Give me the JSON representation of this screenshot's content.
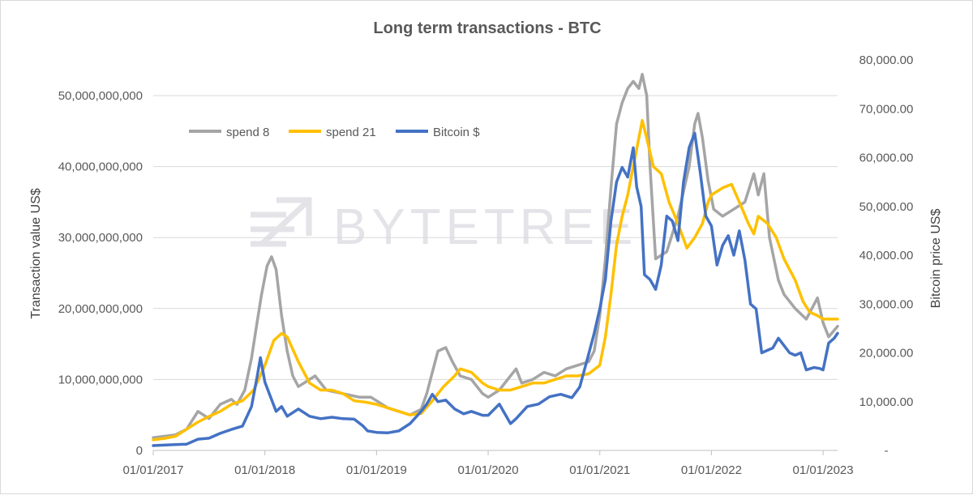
{
  "chart_data": {
    "type": "line",
    "title": "Long term transactions - BTC",
    "ylabel_left": "Transaction value US$",
    "ylabel_right": "Bitcoin price US$",
    "watermark": "BYTETREE",
    "left_axis": {
      "min": 0,
      "max": 50000000000,
      "step": 10000000000,
      "ticks": [
        "0",
        "10,000,000,000",
        "20,000,000,000",
        "30,000,000,000",
        "40,000,000,000",
        "50,000,000,000"
      ]
    },
    "right_axis": {
      "min": 0,
      "max": 80000,
      "step": 10000,
      "ticks": [
        "-",
        "10,000.00",
        "20,000.00",
        "30,000.00",
        "40,000.00",
        "50,000.00",
        "60,000.00",
        "70,000.00",
        "80,000.00"
      ]
    },
    "x_axis": {
      "min": 2017.0,
      "max": 2023.13,
      "ticks": [
        {
          "x": 2017,
          "label": "01/01/2017"
        },
        {
          "x": 2018,
          "label": "01/01/2018"
        },
        {
          "x": 2019,
          "label": "01/01/2019"
        },
        {
          "x": 2020,
          "label": "01/01/2020"
        },
        {
          "x": 2021,
          "label": "01/01/2021"
        },
        {
          "x": 2022,
          "label": "01/01/2022"
        },
        {
          "x": 2023,
          "label": "01/01/2023"
        }
      ]
    },
    "grid": true,
    "legend_position": "top-left",
    "series": [
      {
        "name": "spend 8",
        "axis": "left",
        "color": "#a5a5a5",
        "points": [
          [
            2017.0,
            1.8
          ],
          [
            2017.1,
            2.0
          ],
          [
            2017.2,
            2.2
          ],
          [
            2017.3,
            3.0
          ],
          [
            2017.4,
            5.5
          ],
          [
            2017.5,
            4.5
          ],
          [
            2017.6,
            6.5
          ],
          [
            2017.7,
            7.2
          ],
          [
            2017.75,
            6.5
          ],
          [
            2017.82,
            8.5
          ],
          [
            2017.88,
            13
          ],
          [
            2017.93,
            18
          ],
          [
            2017.97,
            22
          ],
          [
            2018.02,
            26
          ],
          [
            2018.06,
            27.3
          ],
          [
            2018.1,
            25.5
          ],
          [
            2018.15,
            19
          ],
          [
            2018.2,
            14
          ],
          [
            2018.25,
            10.5
          ],
          [
            2018.3,
            9
          ],
          [
            2018.35,
            9.5
          ],
          [
            2018.45,
            10.5
          ],
          [
            2018.55,
            8.5
          ],
          [
            2018.7,
            8
          ],
          [
            2018.85,
            7.5
          ],
          [
            2018.95,
            7.5
          ],
          [
            2019.1,
            6
          ],
          [
            2019.2,
            5.5
          ],
          [
            2019.3,
            5
          ],
          [
            2019.4,
            5.8
          ],
          [
            2019.45,
            8
          ],
          [
            2019.5,
            11
          ],
          [
            2019.55,
            14
          ],
          [
            2019.62,
            14.5
          ],
          [
            2019.68,
            12.5
          ],
          [
            2019.75,
            10.5
          ],
          [
            2019.85,
            10
          ],
          [
            2019.95,
            8
          ],
          [
            2020.0,
            7.5
          ],
          [
            2020.1,
            8.5
          ],
          [
            2020.2,
            10.5
          ],
          [
            2020.25,
            11.5
          ],
          [
            2020.3,
            9.5
          ],
          [
            2020.4,
            10
          ],
          [
            2020.5,
            11
          ],
          [
            2020.6,
            10.5
          ],
          [
            2020.7,
            11.5
          ],
          [
            2020.8,
            12
          ],
          [
            2020.9,
            12.5
          ],
          [
            2020.95,
            14
          ],
          [
            2021.0,
            19
          ],
          [
            2021.05,
            27
          ],
          [
            2021.1,
            37
          ],
          [
            2021.15,
            46
          ],
          [
            2021.2,
            49
          ],
          [
            2021.25,
            51
          ],
          [
            2021.3,
            52
          ],
          [
            2021.35,
            51
          ],
          [
            2021.38,
            53
          ],
          [
            2021.42,
            50
          ],
          [
            2021.45,
            40
          ],
          [
            2021.5,
            27
          ],
          [
            2021.6,
            28
          ],
          [
            2021.7,
            33
          ],
          [
            2021.8,
            40
          ],
          [
            2021.85,
            46
          ],
          [
            2021.88,
            47.5
          ],
          [
            2021.92,
            44
          ],
          [
            2021.97,
            38
          ],
          [
            2022.02,
            34
          ],
          [
            2022.1,
            33
          ],
          [
            2022.2,
            34
          ],
          [
            2022.3,
            35
          ],
          [
            2022.38,
            39
          ],
          [
            2022.42,
            36
          ],
          [
            2022.47,
            39
          ],
          [
            2022.52,
            30
          ],
          [
            2022.6,
            24
          ],
          [
            2022.65,
            22
          ],
          [
            2022.75,
            20
          ],
          [
            2022.85,
            18.5
          ],
          [
            2022.95,
            21.5
          ],
          [
            2023.0,
            18
          ],
          [
            2023.05,
            16
          ],
          [
            2023.13,
            17.5
          ]
        ]
      },
      {
        "name": "spend 21",
        "axis": "left",
        "color": "#ffc000",
        "points": [
          [
            2017.0,
            1.5
          ],
          [
            2017.1,
            1.7
          ],
          [
            2017.2,
            2.0
          ],
          [
            2017.3,
            3.0
          ],
          [
            2017.4,
            4.0
          ],
          [
            2017.5,
            4.8
          ],
          [
            2017.6,
            5.5
          ],
          [
            2017.7,
            6.5
          ],
          [
            2017.8,
            7.0
          ],
          [
            2017.9,
            8.5
          ],
          [
            2018.0,
            12
          ],
          [
            2018.08,
            15.5
          ],
          [
            2018.15,
            16.5
          ],
          [
            2018.2,
            16
          ],
          [
            2018.3,
            12.5
          ],
          [
            2018.4,
            9.5
          ],
          [
            2018.5,
            8.5
          ],
          [
            2018.6,
            8.5
          ],
          [
            2018.7,
            8
          ],
          [
            2018.8,
            7
          ],
          [
            2018.9,
            6.8
          ],
          [
            2019.0,
            6.5
          ],
          [
            2019.1,
            6
          ],
          [
            2019.2,
            5.5
          ],
          [
            2019.3,
            5
          ],
          [
            2019.4,
            5.2
          ],
          [
            2019.5,
            7
          ],
          [
            2019.6,
            9
          ],
          [
            2019.7,
            10.5
          ],
          [
            2019.75,
            11.5
          ],
          [
            2019.85,
            11
          ],
          [
            2019.95,
            9.5
          ],
          [
            2020.0,
            9
          ],
          [
            2020.1,
            8.5
          ],
          [
            2020.2,
            8.5
          ],
          [
            2020.3,
            9
          ],
          [
            2020.4,
            9.5
          ],
          [
            2020.5,
            9.5
          ],
          [
            2020.6,
            10
          ],
          [
            2020.7,
            10.5
          ],
          [
            2020.8,
            10.5
          ],
          [
            2020.9,
            10.8
          ],
          [
            2021.0,
            12
          ],
          [
            2021.05,
            16
          ],
          [
            2021.1,
            22
          ],
          [
            2021.15,
            29
          ],
          [
            2021.2,
            33
          ],
          [
            2021.25,
            36
          ],
          [
            2021.3,
            40
          ],
          [
            2021.38,
            46.5
          ],
          [
            2021.42,
            44
          ],
          [
            2021.48,
            40
          ],
          [
            2021.55,
            39
          ],
          [
            2021.62,
            35
          ],
          [
            2021.7,
            32
          ],
          [
            2021.78,
            28.5
          ],
          [
            2021.85,
            30
          ],
          [
            2021.92,
            32
          ],
          [
            2021.97,
            35
          ],
          [
            2022.0,
            36
          ],
          [
            2022.1,
            37
          ],
          [
            2022.18,
            37.5
          ],
          [
            2022.25,
            35
          ],
          [
            2022.33,
            32
          ],
          [
            2022.38,
            30.5
          ],
          [
            2022.42,
            33
          ],
          [
            2022.5,
            32
          ],
          [
            2022.58,
            30
          ],
          [
            2022.65,
            27
          ],
          [
            2022.75,
            24
          ],
          [
            2022.82,
            21
          ],
          [
            2022.88,
            19.5
          ],
          [
            2022.95,
            19
          ],
          [
            2023.0,
            18.5
          ],
          [
            2023.13,
            18.5
          ]
        ]
      },
      {
        "name": "Bitcoin $",
        "axis": "right",
        "color": "#4472c4",
        "points": [
          [
            2017.0,
            1000
          ],
          [
            2017.1,
            1100
          ],
          [
            2017.2,
            1200
          ],
          [
            2017.3,
            1300
          ],
          [
            2017.4,
            2300
          ],
          [
            2017.5,
            2500
          ],
          [
            2017.6,
            3500
          ],
          [
            2017.7,
            4300
          ],
          [
            2017.8,
            5000
          ],
          [
            2017.88,
            9000
          ],
          [
            2017.93,
            15000
          ],
          [
            2017.96,
            19000
          ],
          [
            2018.0,
            14000
          ],
          [
            2018.05,
            11000
          ],
          [
            2018.1,
            8000
          ],
          [
            2018.15,
            9000
          ],
          [
            2018.2,
            7000
          ],
          [
            2018.3,
            8500
          ],
          [
            2018.4,
            7000
          ],
          [
            2018.5,
            6500
          ],
          [
            2018.6,
            6800
          ],
          [
            2018.7,
            6500
          ],
          [
            2018.8,
            6400
          ],
          [
            2018.88,
            5000
          ],
          [
            2018.92,
            4000
          ],
          [
            2019.0,
            3700
          ],
          [
            2019.1,
            3600
          ],
          [
            2019.2,
            4000
          ],
          [
            2019.3,
            5500
          ],
          [
            2019.4,
            8000
          ],
          [
            2019.45,
            9500
          ],
          [
            2019.5,
            11500
          ],
          [
            2019.55,
            10000
          ],
          [
            2019.62,
            10300
          ],
          [
            2019.7,
            8500
          ],
          [
            2019.78,
            7500
          ],
          [
            2019.85,
            8000
          ],
          [
            2019.95,
            7200
          ],
          [
            2020.0,
            7200
          ],
          [
            2020.1,
            9500
          ],
          [
            2020.2,
            5500
          ],
          [
            2020.25,
            6500
          ],
          [
            2020.35,
            9000
          ],
          [
            2020.45,
            9500
          ],
          [
            2020.55,
            11000
          ],
          [
            2020.65,
            11500
          ],
          [
            2020.75,
            10800
          ],
          [
            2020.82,
            13000
          ],
          [
            2020.88,
            18000
          ],
          [
            2020.95,
            24000
          ],
          [
            2021.0,
            29000
          ],
          [
            2021.05,
            35000
          ],
          [
            2021.1,
            47000
          ],
          [
            2021.15,
            55000
          ],
          [
            2021.2,
            58000
          ],
          [
            2021.25,
            56000
          ],
          [
            2021.3,
            62000
          ],
          [
            2021.33,
            54000
          ],
          [
            2021.37,
            50000
          ],
          [
            2021.4,
            36000
          ],
          [
            2021.45,
            35000
          ],
          [
            2021.5,
            33000
          ],
          [
            2021.55,
            38000
          ],
          [
            2021.6,
            48000
          ],
          [
            2021.65,
            47000
          ],
          [
            2021.7,
            43000
          ],
          [
            2021.75,
            55000
          ],
          [
            2021.8,
            62000
          ],
          [
            2021.85,
            65000
          ],
          [
            2021.9,
            57000
          ],
          [
            2021.95,
            48000
          ],
          [
            2022.0,
            46000
          ],
          [
            2022.05,
            38000
          ],
          [
            2022.1,
            42000
          ],
          [
            2022.15,
            44000
          ],
          [
            2022.2,
            40000
          ],
          [
            2022.25,
            45000
          ],
          [
            2022.3,
            39000
          ],
          [
            2022.35,
            30000
          ],
          [
            2022.4,
            29000
          ],
          [
            2022.45,
            20000
          ],
          [
            2022.55,
            21000
          ],
          [
            2022.6,
            23000
          ],
          [
            2022.7,
            20000
          ],
          [
            2022.75,
            19500
          ],
          [
            2022.8,
            20000
          ],
          [
            2022.85,
            16500
          ],
          [
            2022.92,
            17000
          ],
          [
            2022.97,
            16800
          ],
          [
            2023.0,
            16500
          ],
          [
            2023.05,
            22000
          ],
          [
            2023.1,
            23000
          ],
          [
            2023.13,
            24000
          ]
        ]
      }
    ]
  }
}
